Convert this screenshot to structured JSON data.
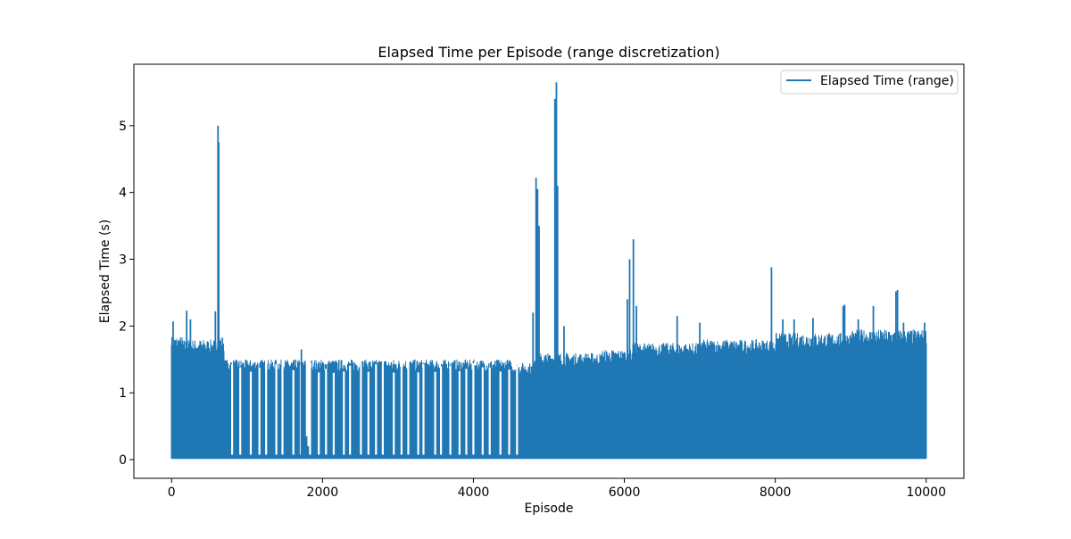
{
  "chart_data": {
    "type": "line",
    "title": "Elapsed Time per Episode (range discretization)",
    "xlabel": "Episode",
    "ylabel": "Elapsed Time (s)",
    "xlim": [
      -500,
      10500
    ],
    "ylim": [
      -0.28,
      5.92
    ],
    "x_ticks": [
      0,
      2000,
      4000,
      6000,
      8000,
      10000
    ],
    "y_ticks": [
      0,
      1,
      2,
      3,
      4,
      5
    ],
    "grid": false,
    "legend": "top-right",
    "series": [
      {
        "name": "Elapsed Time (range)",
        "color": "#1f77b4",
        "episode_range": [
          0,
          10000
        ],
        "min_value": 0.02,
        "band_profile": [
          {
            "x": [
              0,
              150
            ],
            "band_top": 1.85
          },
          {
            "x": [
              150,
              600
            ],
            "band_top": 1.8
          },
          {
            "x": [
              600,
              700
            ],
            "band_top": 1.85
          },
          {
            "x": [
              700,
              4500
            ],
            "band_top": 1.5
          },
          {
            "x": [
              4500,
              4800
            ],
            "band_top": 1.45
          },
          {
            "x": [
              4800,
              5700
            ],
            "band_top": 1.6
          },
          {
            "x": [
              5700,
              6100
            ],
            "band_top": 1.65
          },
          {
            "x": [
              6100,
              7000
            ],
            "band_top": 1.75
          },
          {
            "x": [
              7000,
              8000
            ],
            "band_top": 1.8
          },
          {
            "x": [
              8000,
              9000
            ],
            "band_top": 1.9
          },
          {
            "x": [
              9000,
              10000
            ],
            "band_top": 1.95
          }
        ],
        "peaks": [
          {
            "x": 20,
            "y": 2.07
          },
          {
            "x": 200,
            "y": 2.23
          },
          {
            "x": 250,
            "y": 2.1
          },
          {
            "x": 580,
            "y": 2.22
          },
          {
            "x": 615,
            "y": 5.0
          },
          {
            "x": 625,
            "y": 4.75
          },
          {
            "x": 1720,
            "y": 1.65
          },
          {
            "x": 4790,
            "y": 2.2
          },
          {
            "x": 4830,
            "y": 4.22
          },
          {
            "x": 4850,
            "y": 4.05
          },
          {
            "x": 4870,
            "y": 3.5
          },
          {
            "x": 5080,
            "y": 5.4
          },
          {
            "x": 5100,
            "y": 5.65
          },
          {
            "x": 5115,
            "y": 4.1
          },
          {
            "x": 5200,
            "y": 2.0
          },
          {
            "x": 6040,
            "y": 2.4
          },
          {
            "x": 6070,
            "y": 3.0
          },
          {
            "x": 6120,
            "y": 3.3
          },
          {
            "x": 6160,
            "y": 2.3
          },
          {
            "x": 6700,
            "y": 2.15
          },
          {
            "x": 7000,
            "y": 2.05
          },
          {
            "x": 7950,
            "y": 2.88
          },
          {
            "x": 8100,
            "y": 2.1
          },
          {
            "x": 8250,
            "y": 2.1
          },
          {
            "x": 8500,
            "y": 2.12
          },
          {
            "x": 8900,
            "y": 2.3
          },
          {
            "x": 8920,
            "y": 2.32
          },
          {
            "x": 9100,
            "y": 2.1
          },
          {
            "x": 9300,
            "y": 2.3
          },
          {
            "x": 9600,
            "y": 2.52
          },
          {
            "x": 9620,
            "y": 2.54
          },
          {
            "x": 9700,
            "y": 2.05
          },
          {
            "x": 9980,
            "y": 2.05
          }
        ],
        "dips": [
          {
            "x": [
              1780,
              1800
            ],
            "y": 0.35
          },
          {
            "x": [
              1800,
              1840
            ],
            "y": 0.2
          }
        ]
      }
    ]
  }
}
